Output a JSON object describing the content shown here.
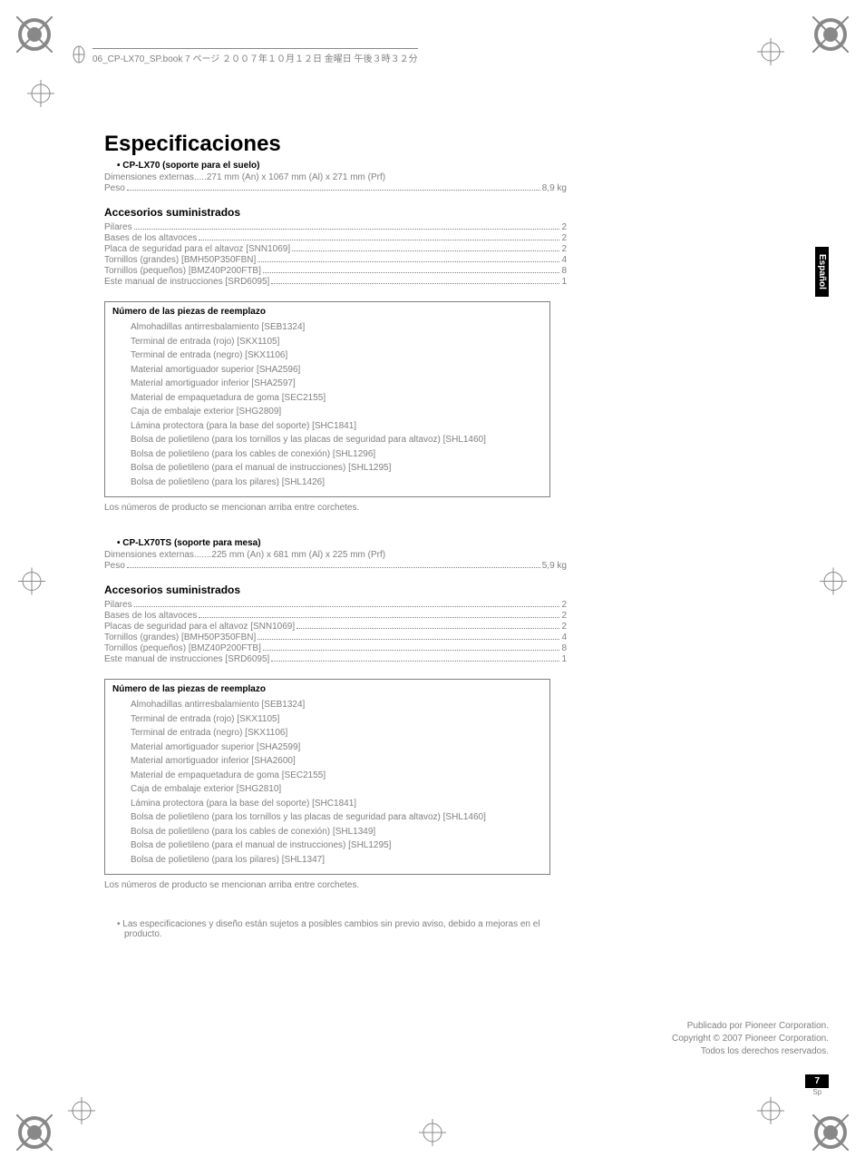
{
  "header_text": "06_CP-LX70_SP.book 7 ページ ２００７年１０月１２日 金曜日 午後３時３２分",
  "side_tab": "Español",
  "title": "Especificaciones",
  "product1": {
    "name": "CP-LX70 (soporte para el suelo)",
    "dim_label": "Dimensiones externas",
    "dim_value": ".....271 mm (An) x 1067 mm (Al) x 271 mm (Prf)",
    "peso_label": "Peso",
    "peso_value": "8,9 kg"
  },
  "accessories_heading": "Accesorios suministrados",
  "accessories1": [
    {
      "name": "Pilares",
      "qty": "2"
    },
    {
      "name": "Bases de los altavoces",
      "qty": "2"
    },
    {
      "name": "Placa de seguridad para el altavoz [SNN1069]",
      "qty": "2"
    },
    {
      "name": "Tornillos (grandes) [BMH50P350FBN]",
      "qty": "4"
    },
    {
      "name": "Tornillos (pequeños) [BMZ40P200FTB]",
      "qty": "8"
    },
    {
      "name": "Este manual de instrucciones [SRD6095]",
      "qty": "1"
    }
  ],
  "parts_box_title": "Número de las piezas de reemplazo",
  "parts1": [
    "Almohadillas antirresbalamiento [SEB1324]",
    "Terminal de entrada (rojo) [SKX1105]",
    "Terminal de entrada (negro) [SKX1106]",
    "Material amortiguador superior [SHA2596]",
    "Material amortiguador inferior [SHA2597]",
    "Material de empaquetadura de goma [SEC2155]",
    "Caja de embalaje exterior [SHG2809]",
    "Lámina protectora (para la base del soporte) [SHC1841]",
    "Bolsa de polietileno (para los tornillos y las placas de seguridad para altavoz) [SHL1460]",
    "Bolsa de polietileno (para los cables de conexión) [SHL1296]",
    "Bolsa de polietileno (para el manual de instrucciones) [SHL1295]",
    "Bolsa de polietileno (para los pilares) [SHL1426]"
  ],
  "note_text": "Los números de producto se mencionan arriba entre corchetes.",
  "product2": {
    "name": "CP-LX70TS (soporte para mesa)",
    "dim_label": "Dimensiones externas",
    "dim_value": ".......225 mm (An) x 681 mm (Al) x 225 mm (Prf)",
    "peso_label": "Peso",
    "peso_value": "5,9 kg"
  },
  "accessories2": [
    {
      "name": "Pilares",
      "qty": "2"
    },
    {
      "name": "Bases de los altavoces",
      "qty": "2"
    },
    {
      "name": "Placas de seguridad para el altavoz [SNN1069]",
      "qty": "2"
    },
    {
      "name": "Tornillos (grandes) [BMH50P350FBN]",
      "qty": "4"
    },
    {
      "name": "Tornillos (pequeños) [BMZ40P200FTB]",
      "qty": "8"
    },
    {
      "name": "Este manual de instrucciones [SRD6095]",
      "qty": "1"
    }
  ],
  "parts2": [
    "Almohadillas antirresbalamiento [SEB1324]",
    "Terminal de entrada (rojo) [SKX1105]",
    "Terminal de entrada (negro) [SKX1106]",
    "Material amortiguador superior [SHA2599]",
    "Material amortiguador inferior [SHA2600]",
    "Material de empaquetadura de goma [SEC2155]",
    "Caja de embalaje exterior [SHG2810]",
    "Lámina protectora (para la base del soporte) [SHC1841]",
    "Bolsa de polietileno (para los tornillos y las placas de seguridad para altavoz) [SHL1460]",
    "Bolsa de polietileno (para los cables de conexión) [SHL1349]",
    "Bolsa de polietileno (para el manual de instrucciones) [SHL1295]",
    "Bolsa de polietileno (para los pilares) [SHL1347]"
  ],
  "disclaimer": "Las especificaciones y diseño están sujetos a posibles cambios sin previo aviso, debido a mejoras en el producto.",
  "footer": {
    "line1": "Publicado por Pioneer Corporation.",
    "line2": "Copyright © 2007 Pioneer Corporation.",
    "line3": "Todos los derechos reservados."
  },
  "page_number": "7",
  "page_lang": "Sp"
}
